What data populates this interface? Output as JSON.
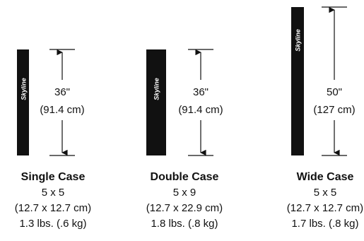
{
  "cases": [
    {
      "name": "Single Case",
      "brand": "Skyline",
      "height_label": "36\"",
      "height_metric": "(91.4 cm)",
      "size": "5 x 5",
      "size_metric": "(12.7 x 12.7 cm)",
      "weight": "1.3 lbs. (.6 kg)"
    },
    {
      "name": "Double Case",
      "brand": "Skyline",
      "height_label": "36\"",
      "height_metric": "(91.4 cm)",
      "size": "5 x 9",
      "size_metric": "(12.7 x 22.9 cm)",
      "weight": "1.8 lbs. (.8 kg)"
    },
    {
      "name": "Wide Case",
      "brand": "Skyline",
      "height_label": "50\"",
      "height_metric": "(127 cm)",
      "size": "5 x 5",
      "size_metric": "(12.7 x 12.7 cm)",
      "weight": "1.7 lbs. (.8 kg)"
    }
  ],
  "colors": {
    "case_fill": "#111111",
    "line": "#111111",
    "background": "#ffffff"
  }
}
